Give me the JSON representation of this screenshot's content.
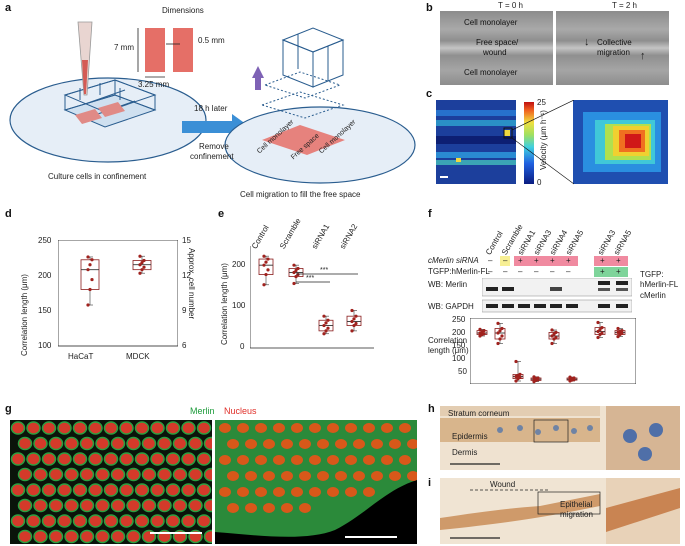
{
  "labels": {
    "a": "a",
    "b": "b",
    "c": "c",
    "d": "d",
    "e": "e",
    "f": "f",
    "g": "g",
    "h": "h",
    "i": "i"
  },
  "panel_a": {
    "dimensions_title": "Dimensions",
    "dim_7mm": "7 mm",
    "dim_05mm": "0.5 mm",
    "dim_325mm": "3.25 mm",
    "arrow_top": "18 h later",
    "arrow_bottom_1": "Remove",
    "arrow_bottom_2": "confinement",
    "caption_left": "Culture cells in confinement",
    "caption_right": "Cell migration to fill the free space",
    "mono_left": "Cell monolayer",
    "free_space": "Free space",
    "mono_right": "Cell monolayer"
  },
  "panel_b": {
    "t0": "T = 0 h",
    "t2": "T = 2 h",
    "mono_top": "Cell monolayer",
    "free_1": "Free space/",
    "free_2": "wound",
    "mono_bottom": "Cell monolayer",
    "collective_1": "Collective",
    "collective_2": "migration"
  },
  "panel_c": {
    "colorbar_label": "Velocity (μm h⁻¹)",
    "tick_max": "25",
    "tick_min": "0"
  },
  "panel_d": {
    "ylabel_left": "Correlation length (μm)",
    "ylabel_right": "Approx. cell number",
    "yticks_left": [
      "250",
      "200",
      "150",
      "100"
    ],
    "yticks_right": [
      "15",
      "12",
      "9",
      "6"
    ],
    "categories": [
      "HaCaT",
      "MDCK"
    ]
  },
  "panel_e": {
    "ylabel": "Correlation length (μm)",
    "yticks": [
      "200",
      "100",
      "0"
    ],
    "categories": [
      "Control",
      "Scramble",
      "siRNA1",
      "siRNA2"
    ],
    "sig1": "***",
    "sig2": "***"
  },
  "panel_f": {
    "lanes": [
      "Control",
      "Scramble",
      "siRNA1",
      "siRNA3",
      "siRNA4",
      "siRNA5",
      "siRNA3",
      "siRNA5"
    ],
    "row1_label": "cMerlin siRNA",
    "row2_label": "TGFP:hMerlin-FL",
    "row1_signs": [
      "–",
      "–",
      "+",
      "+",
      "+",
      "+",
      "+",
      "+"
    ],
    "row2_signs": [
      "–",
      "–",
      "–",
      "–",
      "–",
      "–",
      "+",
      "+"
    ],
    "wb_merlin": "WB: Merlin",
    "wb_gapdh": "WB: GAPDH",
    "tgfp_1": "TGFP:",
    "tgfp_2": "hMerlin-FL",
    "cmerlin": "cMerlin",
    "ylabel_1": "Correlation",
    "ylabel_2": "length (μm)",
    "yticks": [
      "250",
      "200",
      "150",
      "100",
      "50"
    ]
  },
  "panel_g": {
    "merlin": "Merlin",
    "nucleus": "Nucleus"
  },
  "panel_h": {
    "stratum": "Stratum corneum",
    "epidermis": "Epidermis",
    "dermis": "Dermis"
  },
  "panel_i": {
    "wound": "Wound",
    "epi_1": "Epithelial",
    "epi_2": "migration"
  },
  "chart_data": [
    {
      "type": "box",
      "panel": "d",
      "categories": [
        "HaCaT",
        "MDCK"
      ],
      "ylabel": "Correlation length (μm)",
      "ylim": [
        100,
        250
      ],
      "secondary_ylabel": "Approx. cell number",
      "secondary_ylim": [
        6,
        15
      ],
      "series": [
        {
          "name": "HaCaT",
          "min": 158,
          "q1": 180,
          "median": 208,
          "q3": 222,
          "max": 226
        },
        {
          "name": "MDCK",
          "min": 203,
          "q1": 208,
          "median": 215,
          "q3": 221,
          "max": 227
        }
      ]
    },
    {
      "type": "box",
      "panel": "e",
      "categories": [
        "Control",
        "Scramble",
        "siRNA1",
        "siRNA2"
      ],
      "ylabel": "Correlation length (μm)",
      "ylim": [
        0,
        250
      ],
      "series": [
        {
          "name": "Control",
          "min": 155,
          "q1": 180,
          "median": 203,
          "q3": 218,
          "max": 225
        },
        {
          "name": "Scramble",
          "min": 158,
          "q1": 175,
          "median": 185,
          "q3": 195,
          "max": 203
        },
        {
          "name": "siRNA1",
          "min": 35,
          "q1": 42,
          "median": 55,
          "q3": 68,
          "max": 78
        },
        {
          "name": "siRNA2",
          "min": 42,
          "q1": 55,
          "median": 65,
          "q3": 78,
          "max": 92
        }
      ]
    },
    {
      "type": "box",
      "panel": "f",
      "categories": [
        "Control",
        "Scramble",
        "siRNA1",
        "siRNA3",
        "siRNA4",
        "siRNA5",
        "siRNA3",
        "siRNA5"
      ],
      "ylabel": "Correlation length (μm)",
      "ylim": [
        40,
        260
      ],
      "series": [
        {
          "name": "Control",
          "min": 200,
          "q1": 205,
          "median": 210,
          "q3": 218,
          "max": 222
        },
        {
          "name": "Scramble",
          "min": 175,
          "q1": 190,
          "median": 210,
          "q3": 225,
          "max": 242
        },
        {
          "name": "siRNA1",
          "min": 50,
          "q1": 58,
          "median": 65,
          "q3": 72,
          "max": 115
        },
        {
          "name": "siRNA3",
          "min": 48,
          "q1": 52,
          "median": 56,
          "q3": 60,
          "max": 64
        },
        {
          "name": "siRNA4",
          "min": 175,
          "q1": 190,
          "median": 200,
          "q3": 212,
          "max": 220
        },
        {
          "name": "siRNA5",
          "min": 50,
          "q1": 53,
          "median": 56,
          "q3": 60,
          "max": 63
        },
        {
          "name": "siRNA3",
          "min": 195,
          "q1": 205,
          "median": 215,
          "q3": 228,
          "max": 245
        },
        {
          "name": "siRNA5",
          "min": 198,
          "q1": 205,
          "median": 212,
          "q3": 218,
          "max": 225
        }
      ]
    }
  ]
}
